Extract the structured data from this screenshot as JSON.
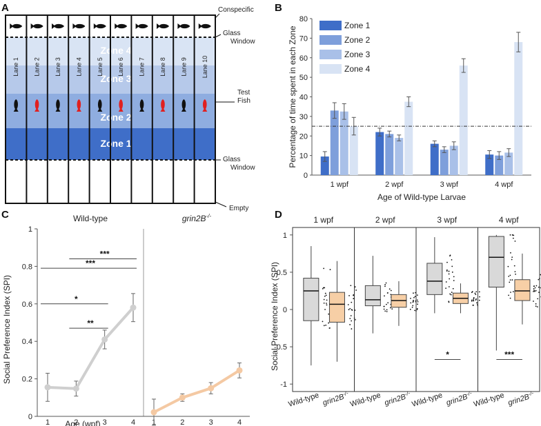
{
  "panels": {
    "a": "A",
    "b": "B",
    "c": "C",
    "d": "D"
  },
  "diagram": {
    "lanes": [
      "Lane 1",
      "Lane 2",
      "Lane 3",
      "Lane 4",
      "Lane 5",
      "Lane 6",
      "Lane 7",
      "Lane 8",
      "Lane 9",
      "Lane 10"
    ],
    "zones": [
      "Zone 4",
      "Zone 3",
      "Zone 2",
      "Zone 1"
    ],
    "side_labels": {
      "conspecific": "Conspecific",
      "glass_top": [
        "Glass",
        "Window"
      ],
      "test_fish": [
        "Test",
        "Fish"
      ],
      "glass_bottom": [
        "Glass",
        "Window"
      ],
      "empty": "Empty"
    },
    "fish_colors": [
      "#111111",
      "#e02020",
      "#111111",
      "#e02020",
      "#111111",
      "#e02020",
      "#111111",
      "#e02020",
      "#111111",
      "#e02020"
    ],
    "zone_colors": [
      "#d9e4f4",
      "#b6c9ea",
      "#8fade0",
      "#3f6ec8"
    ]
  },
  "chart_data": [
    {
      "type": "bar",
      "panel": "B",
      "categories": [
        "1 wpf",
        "2 wpf",
        "3 wpf",
        "4 wpf"
      ],
      "series": [
        {
          "name": "Zone 1",
          "color": "#3f6ec8",
          "values": [
            9.5,
            22,
            16,
            10.5
          ],
          "errors": [
            2.5,
            2,
            1.5,
            2
          ]
        },
        {
          "name": "Zone 2",
          "color": "#7e9fdb",
          "values": [
            33,
            21,
            13,
            10
          ],
          "errors": [
            4,
            1.5,
            1.5,
            2
          ]
        },
        {
          "name": "Zone 3",
          "color": "#a9c0e8",
          "values": [
            32.5,
            19,
            15,
            11.5
          ],
          "errors": [
            4,
            1.5,
            2,
            2
          ]
        },
        {
          "name": "Zone 4",
          "color": "#d8e3f4",
          "values": [
            25,
            37.5,
            56,
            68
          ],
          "errors": [
            4.5,
            2.5,
            3.5,
            5
          ]
        }
      ],
      "reference_line": 25,
      "xlabel": "Age of Wild-type Larvae",
      "ylabel": "Percentage of time spent in each Zone",
      "ylim": [
        0,
        80
      ],
      "yticks": [
        "0",
        "10",
        "20",
        "30",
        "40",
        "50",
        "60",
        "70",
        "80"
      ],
      "legend_position": "top-left"
    },
    {
      "type": "line",
      "panel": "C",
      "ylabel": "Social Preference Index (SPI)",
      "xlabel": "Age (wpf)",
      "ylim": [
        0,
        1
      ],
      "yticks": [
        "0",
        "0.2",
        "0.4",
        "0.6",
        "0.8",
        "1"
      ],
      "x": [
        "1",
        "2",
        "3",
        "4"
      ],
      "series": [
        {
          "name": "Wild-type",
          "color": "#cfcfcf",
          "values": [
            0.155,
            0.148,
            0.41,
            0.58
          ],
          "errors": [
            0.075,
            0.04,
            0.05,
            0.075
          ]
        },
        {
          "name_main": "grin2B",
          "name_sup": "-/-",
          "color": "#f4c9a3",
          "values": [
            0.022,
            0.1,
            0.15,
            0.245
          ],
          "errors": [
            0.07,
            0.02,
            0.03,
            0.04
          ]
        }
      ],
      "significance": [
        {
          "from": "1",
          "to": "3",
          "label": "*"
        },
        {
          "from": "2",
          "to": "3",
          "label": "**"
        },
        {
          "from": "1",
          "to": "4",
          "label": "***"
        },
        {
          "from": "2",
          "to": "4",
          "label": "***"
        }
      ]
    },
    {
      "type": "box",
      "panel": "D",
      "ylabel": "Social Preference Index (SPI)",
      "ylim": [
        -1.1,
        1.1
      ],
      "yticks": [
        "1",
        "0.5",
        "0",
        "-0.5",
        "-1"
      ],
      "groups": [
        {
          "title": "1 wpf",
          "wt": {
            "min": -0.75,
            "q1": -0.15,
            "median": 0.25,
            "q3": 0.42,
            "max": 0.85
          },
          "mut": {
            "min": -0.7,
            "q1": -0.17,
            "median": 0.07,
            "q3": 0.23,
            "max": 0.65
          },
          "sig": ""
        },
        {
          "title": "2 wpf",
          "wt": {
            "min": -0.32,
            "q1": 0.05,
            "median": 0.13,
            "q3": 0.32,
            "max": 0.72
          },
          "mut": {
            "min": -0.22,
            "q1": 0.03,
            "median": 0.12,
            "q3": 0.2,
            "max": 0.38
          },
          "sig": ""
        },
        {
          "title": "3 wpf",
          "wt": {
            "min": -0.05,
            "q1": 0.2,
            "median": 0.38,
            "q3": 0.62,
            "max": 0.97
          },
          "mut": {
            "min": -0.05,
            "q1": 0.08,
            "median": 0.15,
            "q3": 0.22,
            "max": 0.35
          },
          "sig": "*"
        },
        {
          "title": "4 wpf",
          "wt": {
            "min": -0.55,
            "q1": 0.3,
            "median": 0.7,
            "q3": 0.98,
            "max": 1.0
          },
          "mut": {
            "min": -0.2,
            "q1": 0.12,
            "median": 0.25,
            "q3": 0.4,
            "max": 0.75
          },
          "sig": "***"
        }
      ],
      "x_labels": {
        "wt": "Wild-type",
        "mut_main": "grin2B",
        "mut_sup": "-/-"
      },
      "colors": {
        "wt": "#d9d9d9",
        "mut": "#f7cfa6"
      }
    }
  ]
}
